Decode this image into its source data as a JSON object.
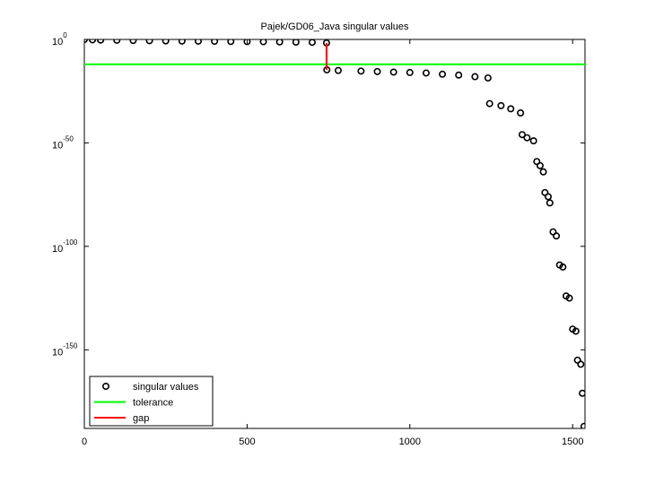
{
  "chart_data": {
    "type": "line",
    "title": "Pajek/GD06_Java singular values",
    "yscale": "log",
    "xlim": [
      0,
      1538
    ],
    "ylim": [
      1e-188,
      1
    ],
    "xticks": [
      0,
      500,
      1000,
      1500
    ],
    "yticks": [
      {
        "value": 1,
        "label": "10^0"
      },
      {
        "value": 1e-50,
        "label": "10^-50"
      },
      {
        "value": 1e-100,
        "label": "10^-100"
      },
      {
        "value": 1e-150,
        "label": "10^-150"
      }
    ],
    "legend": "southwest",
    "series": [
      {
        "name": "singular values",
        "color": "#000000",
        "style": "markers",
        "x": [
          0,
          25,
          50,
          100,
          150,
          200,
          250,
          300,
          350,
          400,
          450,
          500,
          550,
          600,
          650,
          700,
          744,
          745,
          780,
          850,
          900,
          950,
          1000,
          1050,
          1100,
          1150,
          1200,
          1240,
          1245,
          1280,
          1310,
          1340,
          1345,
          1360,
          1380,
          1390,
          1400,
          1410,
          1415,
          1425,
          1430,
          1440,
          1450,
          1460,
          1470,
          1480,
          1490,
          1500,
          1510,
          1515,
          1525,
          1530,
          1535
        ],
        "values": [
          1,
          0.631,
          0.501,
          0.398,
          0.316,
          0.251,
          0.2,
          0.158,
          0.141,
          0.126,
          0.1,
          0.0891,
          0.0794,
          0.0631,
          0.0501,
          0.0398,
          0.02,
          2e-15,
          1e-15,
          5e-16,
          3e-16,
          1.6e-16,
          1e-16,
          6e-17,
          1.6e-17,
          6e-18,
          1e-18,
          2.5e-19,
          1e-31,
          1e-32,
          3e-34,
          3e-36,
          1e-46,
          3e-48,
          1e-49,
          1e-59,
          1e-61,
          1e-64,
          1e-74,
          1e-76,
          1e-79,
          1e-93,
          1e-95,
          1e-109,
          1e-110,
          1e-124,
          1e-125,
          1e-140,
          1e-141,
          1e-155,
          1e-157,
          1e-171,
          1e-187
        ]
      },
      {
        "name": "tolerance",
        "color": "#00ff00",
        "style": "line",
        "x": [
          0,
          1538
        ],
        "values": [
          1e-12,
          1e-12
        ]
      },
      {
        "name": "gap",
        "color": "#ff0000",
        "style": "line",
        "x": [
          744,
          744
        ],
        "values": [
          0.02,
          2e-15
        ]
      }
    ]
  }
}
